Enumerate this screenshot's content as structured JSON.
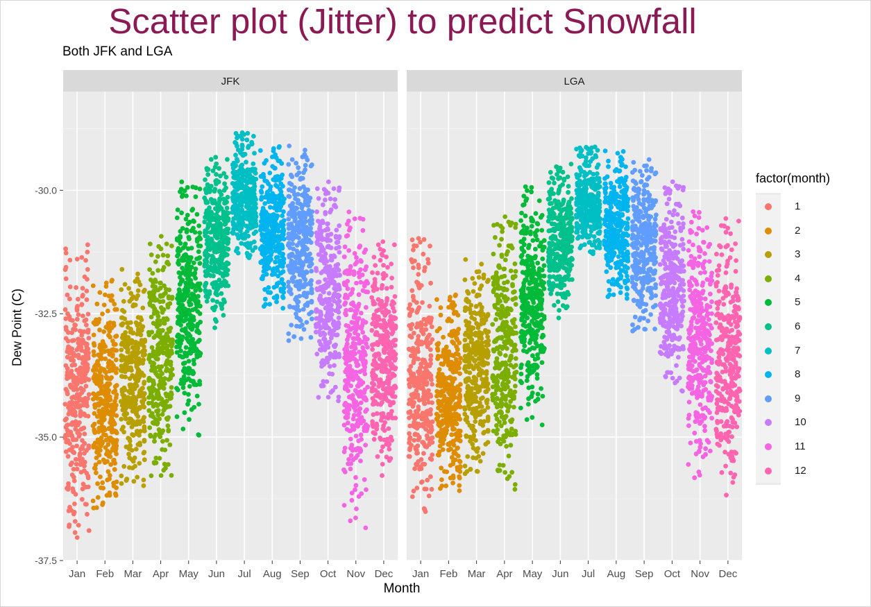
{
  "chart_data": {
    "type": "scatter",
    "title": "Scatter plot (Jitter) to predict Snowfall",
    "subtitle": "Both JFK and LGA",
    "xlabel": "Month",
    "ylabel": "Dew Point (C)",
    "ylim": [
      -37.5,
      -28.0
    ],
    "yticks": [
      "-37.5",
      "-35.0",
      "-32.5",
      "-30.0"
    ],
    "ytick_values": [
      -37.5,
      -35.0,
      -32.5,
      -30.0
    ],
    "categories": [
      "Jan",
      "Feb",
      "Mar",
      "Apr",
      "May",
      "Jun",
      "Jul",
      "Aug",
      "Sep",
      "Oct",
      "Nov",
      "Dec"
    ],
    "facets": [
      "JFK",
      "LGA"
    ],
    "legend_title": "factor(month)",
    "legend_position": "right",
    "grid": true,
    "series": [
      {
        "name": "1",
        "color": "#F8766D"
      },
      {
        "name": "2",
        "color": "#DE8C00"
      },
      {
        "name": "3",
        "color": "#B79F00"
      },
      {
        "name": "4",
        "color": "#7CAE00"
      },
      {
        "name": "5",
        "color": "#00BA38"
      },
      {
        "name": "6",
        "color": "#00C08B"
      },
      {
        "name": "7",
        "color": "#00BFC4"
      },
      {
        "name": "8",
        "color": "#00B4F0"
      },
      {
        "name": "9",
        "color": "#619CFF"
      },
      {
        "name": "10",
        "color": "#C77CFF"
      },
      {
        "name": "11",
        "color": "#F564E3"
      },
      {
        "name": "12",
        "color": "#FF64B0"
      }
    ],
    "ranges_by_facet": {
      "JFK": [
        {
          "month": 1,
          "min": -37.1,
          "max": -31.1
        },
        {
          "month": 2,
          "min": -36.5,
          "max": -31.8
        },
        {
          "month": 3,
          "min": -36.0,
          "max": -31.6
        },
        {
          "month": 4,
          "min": -35.9,
          "max": -30.9
        },
        {
          "month": 5,
          "min": -35.0,
          "max": -29.8
        },
        {
          "month": 6,
          "min": -32.8,
          "max": -29.3
        },
        {
          "month": 7,
          "min": -31.5,
          "max": -28.8
        },
        {
          "month": 8,
          "min": -32.4,
          "max": -29.1
        },
        {
          "month": 9,
          "min": -33.1,
          "max": -29.1
        },
        {
          "month": 10,
          "min": -34.3,
          "max": -29.8
        },
        {
          "month": 11,
          "min": -36.9,
          "max": -30.4
        },
        {
          "month": 12,
          "min": -35.8,
          "max": -31.0
        }
      ],
      "LGA": [
        {
          "month": 1,
          "min": -36.8,
          "max": -30.9
        },
        {
          "month": 2,
          "min": -36.1,
          "max": -32.1
        },
        {
          "month": 3,
          "min": -35.8,
          "max": -31.4
        },
        {
          "month": 4,
          "min": -36.1,
          "max": -30.5
        },
        {
          "month": 5,
          "min": -34.8,
          "max": -29.9
        },
        {
          "month": 6,
          "min": -32.6,
          "max": -29.4
        },
        {
          "month": 7,
          "min": -31.4,
          "max": -29.1
        },
        {
          "month": 8,
          "min": -32.2,
          "max": -29.2
        },
        {
          "month": 9,
          "min": -32.9,
          "max": -29.3
        },
        {
          "month": 10,
          "min": -34.1,
          "max": -29.8
        },
        {
          "month": 11,
          "min": -36.0,
          "max": -30.4
        },
        {
          "month": 12,
          "min": -36.2,
          "max": -30.5
        }
      ]
    }
  },
  "title_color": "#8B1A54"
}
